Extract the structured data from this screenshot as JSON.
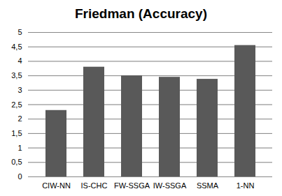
{
  "chart_data": {
    "type": "bar",
    "title": "Friedman (Accuracy)",
    "categories": [
      "CIW-NN",
      "IS-CHC",
      "FW-SSGA",
      "IW-SSGA",
      "SSMA",
      "1-NN"
    ],
    "values": [
      2.3,
      3.8,
      3.5,
      3.45,
      3.38,
      4.55
    ],
    "color": "#595959",
    "ylim": [
      0,
      5
    ],
    "yticks": [
      0,
      {
        "value": 0.5,
        "label": "0,5"
      },
      1,
      {
        "value": 1.5,
        "label": "1,5"
      },
      2,
      {
        "value": 2.5,
        "label": "2,5"
      },
      3,
      {
        "value": 3.5,
        "label": "3,5"
      },
      4,
      {
        "value": 4.5,
        "label": "4,5"
      },
      5
    ],
    "grid": true
  }
}
